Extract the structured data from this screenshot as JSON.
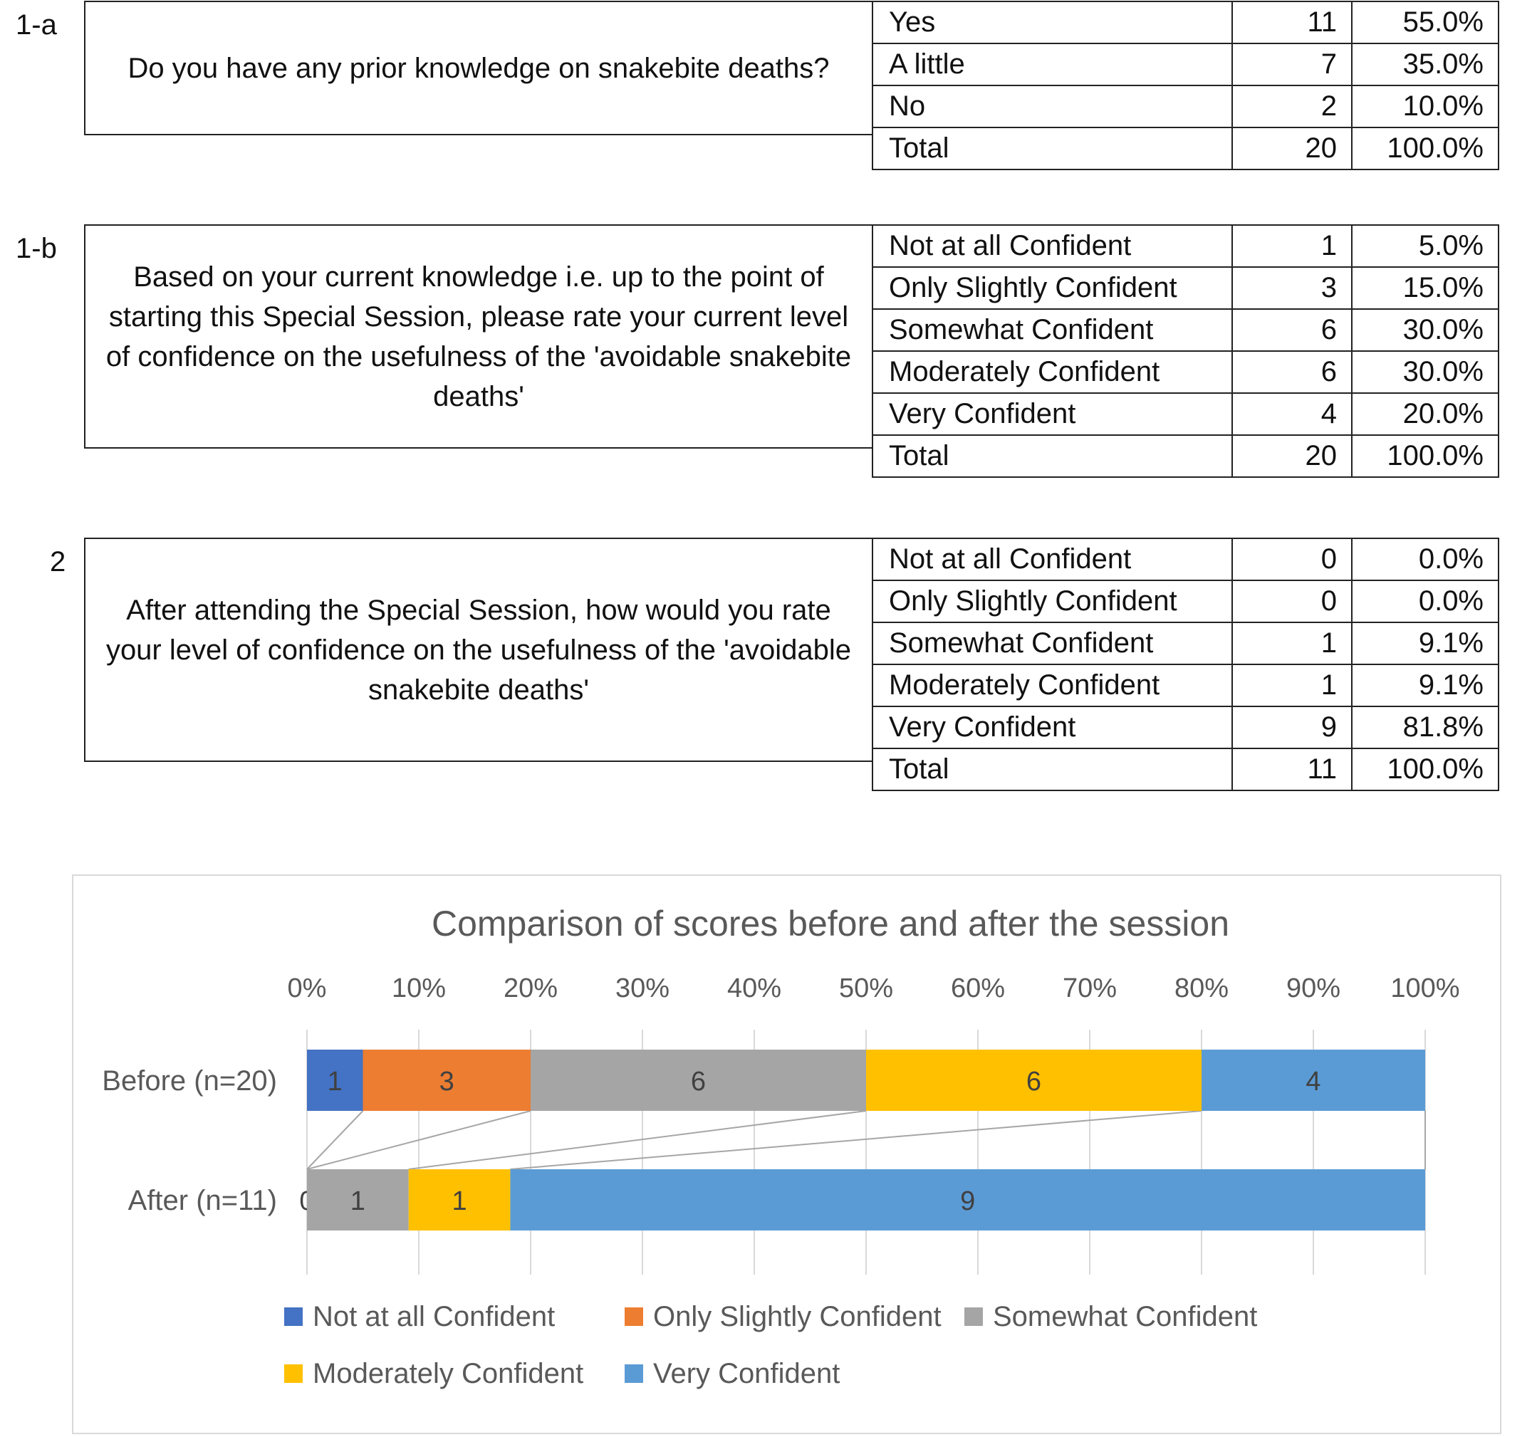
{
  "sections": [
    {
      "id": "1-a",
      "label": "1-a",
      "question": "Do you have any prior knowledge on snakebite deaths?",
      "rows": [
        {
          "label": "Yes",
          "count": "11",
          "percent": "55.0%"
        },
        {
          "label": "A little",
          "count": "7",
          "percent": "35.0%"
        },
        {
          "label": "No",
          "count": "2",
          "percent": "10.0%"
        },
        {
          "label": "Total",
          "count": "20",
          "percent": "100.0%"
        }
      ]
    },
    {
      "id": "1-b",
      "label": "1-b",
      "question": "Based on your current knowledge i.e. up to the point of starting this Special Session, please rate your current level of confidence on the usefulness of the 'avoidable snakebite deaths'",
      "rows": [
        {
          "label": "Not at all Confident",
          "count": "1",
          "percent": "5.0%"
        },
        {
          "label": "Only Slightly Confident",
          "count": "3",
          "percent": "15.0%"
        },
        {
          "label": "Somewhat Confident",
          "count": "6",
          "percent": "30.0%"
        },
        {
          "label": "Moderately Confident",
          "count": "6",
          "percent": "30.0%"
        },
        {
          "label": "Very Confident",
          "count": "4",
          "percent": "20.0%"
        },
        {
          "label": "Total",
          "count": "20",
          "percent": "100.0%"
        }
      ]
    },
    {
      "id": "2",
      "label": "2",
      "question": "After attending the Special Session, how would you rate your level of confidence on the usefulness of the 'avoidable snakebite deaths'",
      "rows": [
        {
          "label": "Not at all Confident",
          "count": "0",
          "percent": "0.0%"
        },
        {
          "label": "Only Slightly Confident",
          "count": "0",
          "percent": "0.0%"
        },
        {
          "label": "Somewhat Confident",
          "count": "1",
          "percent": "9.1%"
        },
        {
          "label": "Moderately Confident",
          "count": "1",
          "percent": "9.1%"
        },
        {
          "label": "Very Confident",
          "count": "9",
          "percent": "81.8%"
        },
        {
          "label": "Total",
          "count": "11",
          "percent": "100.0%"
        }
      ]
    }
  ],
  "chart_data": {
    "type": "bar",
    "orientation": "horizontal",
    "stacked": "percent",
    "title": "Comparison of scores before and after the session",
    "categories": [
      "Before (n=20)",
      "After (n=11)"
    ],
    "xlim": [
      0,
      100
    ],
    "xticks": [
      "0%",
      "10%",
      "20%",
      "30%",
      "40%",
      "50%",
      "60%",
      "70%",
      "80%",
      "90%",
      "100%"
    ],
    "grid": true,
    "series_lines": true,
    "legend_position": "bottom",
    "series": [
      {
        "name": "Not at all Confident",
        "color": "#4472c4",
        "values": [
          1,
          0
        ]
      },
      {
        "name": "Only Slightly Confident",
        "color": "#ed7d31",
        "values": [
          3,
          0
        ]
      },
      {
        "name": "Somewhat Confident",
        "color": "#a5a5a5",
        "values": [
          6,
          1
        ]
      },
      {
        "name": "Moderately Confident",
        "color": "#ffc000",
        "values": [
          6,
          1
        ]
      },
      {
        "name": "Very Confident",
        "color": "#5b9bd5",
        "values": [
          4,
          9
        ]
      }
    ]
  }
}
